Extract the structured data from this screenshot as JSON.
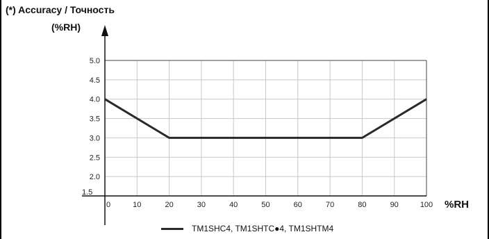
{
  "chart_data": {
    "type": "line",
    "title": "(*) Accuracy / Точность",
    "ylabel": "(%RH)",
    "xlabel": "%RH",
    "x": [
      0,
      20,
      80,
      100
    ],
    "series": [
      {
        "name": "TM1SHC4, TM1SHTC●4, TM1SHTM4",
        "values": [
          4.0,
          3.0,
          3.0,
          4.0
        ]
      }
    ],
    "xticks": [
      "0",
      "10",
      "20",
      "30",
      "40",
      "50",
      "60",
      "70",
      "80",
      "90",
      "100"
    ],
    "yticks": [
      "1.5",
      "2.0",
      "2.5",
      "3.0",
      "3.5",
      "4.0",
      "4.5",
      "5.0"
    ],
    "xlim": [
      0,
      100
    ],
    "ylim": [
      1.5,
      5.0
    ],
    "grid": true,
    "legend_position": "bottom-center",
    "line_color": "#2a2a2a",
    "grid_color": "#c8c8c8"
  }
}
